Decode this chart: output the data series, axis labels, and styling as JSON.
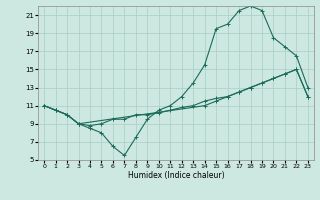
{
  "xlabel": "Humidex (Indice chaleur)",
  "bg_color": "#cde8e0",
  "grid_color": "#a8cec6",
  "line_color": "#1a6b5a",
  "xlim": [
    -0.5,
    23.5
  ],
  "ylim": [
    5,
    22
  ],
  "xticks": [
    0,
    1,
    2,
    3,
    4,
    5,
    6,
    7,
    8,
    9,
    10,
    11,
    12,
    13,
    14,
    15,
    16,
    17,
    18,
    19,
    20,
    21,
    22,
    23
  ],
  "yticks": [
    5,
    7,
    9,
    11,
    13,
    15,
    17,
    19,
    21
  ],
  "line1_x": [
    0,
    1,
    2,
    3,
    4,
    5,
    6,
    7,
    8,
    9,
    10,
    11,
    12,
    13,
    14,
    15,
    16,
    17,
    18,
    19,
    20,
    21,
    22,
    23
  ],
  "line1_y": [
    11,
    10.5,
    10,
    9,
    8.5,
    8,
    6.5,
    5.5,
    7.5,
    9.5,
    10.5,
    11,
    12,
    13.5,
    15.5,
    19.5,
    20,
    21.5,
    22,
    21.5,
    18.5,
    17.5,
    16.5,
    13
  ],
  "line2_x": [
    0,
    1,
    2,
    3,
    14,
    15,
    16,
    17,
    18,
    19,
    20,
    21,
    22,
    23
  ],
  "line2_y": [
    11,
    10.5,
    10,
    9,
    11,
    11.5,
    12,
    12.5,
    13,
    13.5,
    14,
    14.5,
    15,
    12
  ],
  "line3_x": [
    0,
    1,
    2,
    3,
    4,
    5,
    6,
    7,
    8,
    9,
    10,
    11,
    12,
    13,
    14,
    15,
    16,
    17,
    18,
    19,
    20,
    21,
    22,
    23
  ],
  "line3_y": [
    11,
    10.5,
    10,
    9,
    8.8,
    9,
    9.5,
    9.5,
    10,
    10,
    10.2,
    10.5,
    10.8,
    11,
    11.5,
    11.8,
    12,
    12.5,
    13,
    13.5,
    14,
    14.5,
    15,
    12
  ]
}
